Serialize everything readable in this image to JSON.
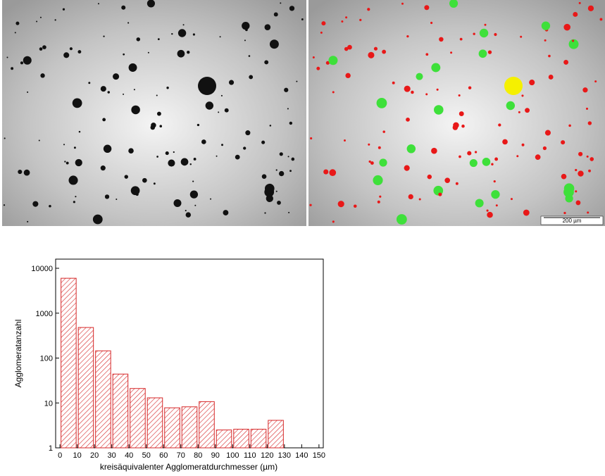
{
  "scale_bar_label": "200 µm",
  "chart_data": {
    "type": "histogram",
    "xlabel": "kreisäquivalenter Agglomeratdurchmesser (µm)",
    "ylabel": "Agglomeratanzahl",
    "bins": [
      0,
      10,
      20,
      30,
      40,
      50,
      60,
      70,
      80,
      90,
      100,
      110,
      120,
      130
    ],
    "values": [
      6000,
      480,
      145,
      44,
      21,
      13,
      7.8,
      8.2,
      10.7,
      2.5,
      2.6,
      2.6,
      4.1
    ],
    "color": "#d62728",
    "log_y": true,
    "xlim": [
      -2.5,
      152.5
    ],
    "ylim": [
      1,
      16000
    ],
    "xticks": [
      0,
      10,
      20,
      30,
      40,
      50,
      60,
      70,
      80,
      90,
      100,
      110,
      120,
      130,
      140,
      150
    ],
    "yticks": [
      1,
      10,
      100,
      1000,
      10000
    ]
  }
}
